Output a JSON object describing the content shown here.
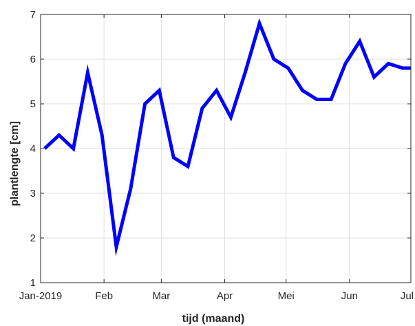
{
  "chart_data": {
    "type": "line",
    "title": "",
    "xlabel": "tijd (maand)",
    "ylabel": "plantlengte [cm]",
    "ylim": [
      1,
      7
    ],
    "xlim": [
      "2019-01-01",
      "2019-07-01"
    ],
    "grid": true,
    "legend": "none",
    "y_ticks": [
      "1",
      "2",
      "3",
      "4",
      "5",
      "6",
      "7"
    ],
    "x_ticks": [
      {
        "date": "2019-01-01",
        "label": "Jan-2019"
      },
      {
        "date": "2019-02-01",
        "label": "Feb"
      },
      {
        "date": "2019-03-01",
        "label": "Mar"
      },
      {
        "date": "2019-04-01",
        "label": "Apr"
      },
      {
        "date": "2019-05-01",
        "label": "Mei"
      },
      {
        "date": "2019-06-01",
        "label": "Jun"
      },
      {
        "date": "2019-07-01",
        "label": "Jul"
      }
    ],
    "series": [
      {
        "color": "#0000ff",
        "x": [
          "2019-01-03",
          "2019-01-10",
          "2019-01-17",
          "2019-01-24",
          "2019-01-31",
          "2019-02-07",
          "2019-02-14",
          "2019-02-21",
          "2019-02-28",
          "2019-03-07",
          "2019-03-14",
          "2019-03-21",
          "2019-03-28",
          "2019-04-04",
          "2019-04-11",
          "2019-04-18",
          "2019-04-25",
          "2019-05-02",
          "2019-05-09",
          "2019-05-16",
          "2019-05-23",
          "2019-05-30",
          "2019-06-06",
          "2019-06-13",
          "2019-06-20",
          "2019-06-27",
          "2019-07-04"
        ],
        "y": [
          4.0,
          4.3,
          4.0,
          5.7,
          4.3,
          1.8,
          3.1,
          5.0,
          5.3,
          3.8,
          3.6,
          4.9,
          5.3,
          4.7,
          5.7,
          6.8,
          6.0,
          5.8,
          5.3,
          5.1,
          5.1,
          5.9,
          6.4,
          5.6,
          5.9,
          5.8,
          5.8
        ]
      }
    ]
  }
}
